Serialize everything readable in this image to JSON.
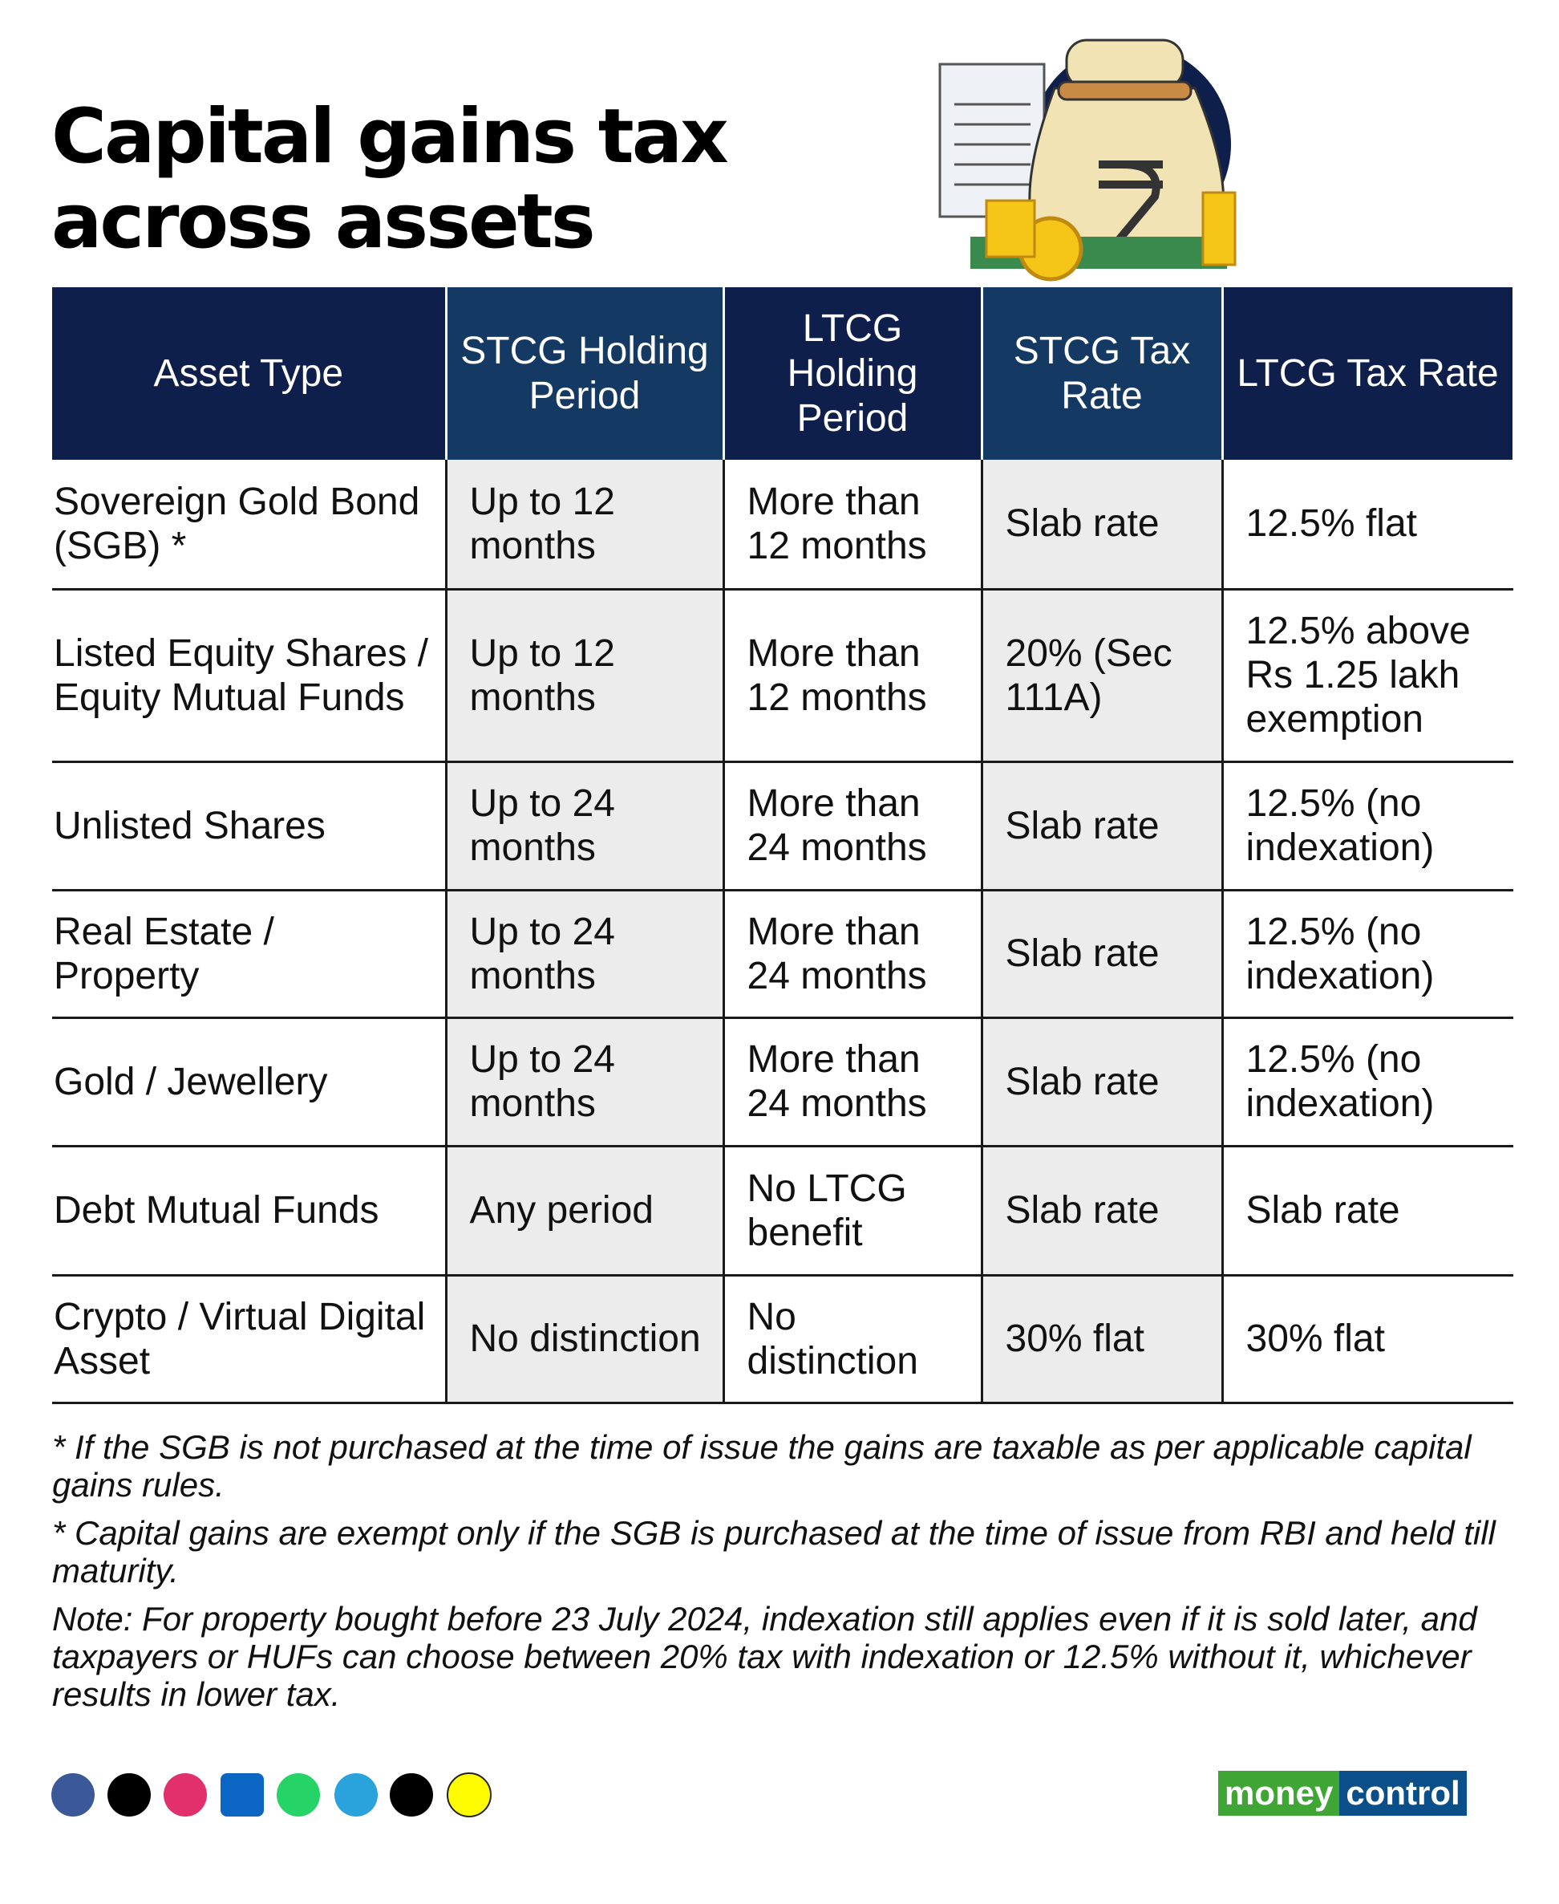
{
  "header": {
    "title": "Capital gains tax across assets"
  },
  "table": {
    "headers": [
      "Asset Type",
      "STCG Holding Period",
      "LTCG Holding Period",
      "STCG Tax Rate",
      "LTCG Tax Rate"
    ],
    "rows": [
      [
        "Sovereign Gold Bond (SGB) *",
        "Up to 12 months",
        "More than 12 months",
        "Slab rate",
        "12.5% flat"
      ],
      [
        "Listed Equity Shares / Equity Mutual Funds",
        "Up to 12 months",
        "More than 12 months",
        "20% (Sec 111A)",
        "12.5% above Rs 1.25 lakh exemption"
      ],
      [
        "Unlisted Shares",
        "Up to 24 months",
        "More than 24 months",
        "Slab rate",
        "12.5% (no indexation)"
      ],
      [
        "Real Estate / Property",
        "Up to 24 months",
        "More than 24 months",
        "Slab rate",
        "12.5% (no indexation)"
      ],
      [
        "Gold / Jewellery",
        "Up to 24 months",
        "More than 24 months",
        "Slab rate",
        "12.5% (no indexation)"
      ],
      [
        "Debt Mutual Funds",
        "Any period",
        "No LTCG benefit",
        "Slab rate",
        "Slab rate"
      ],
      [
        "Crypto / Virtual Digital Asset",
        "No distinction",
        "No distinction",
        "30% flat",
        "30% flat"
      ]
    ]
  },
  "footnotes": [
    "* If the SGB is not purchased at the time of issue the gains are taxable as per applicable capital gains rules.",
    "* Capital gains are exempt only if the SGB is purchased at the time of issue from RBI and held till maturity.",
    "Note: For property bought before 23 July 2024, indexation still applies even if it is sold later, and taxpayers or HUFs can choose between 20% tax with indexation or 12.5% without it, whichever results in lower tax."
  ],
  "footer": {
    "brand": [
      "money",
      "control"
    ]
  }
}
